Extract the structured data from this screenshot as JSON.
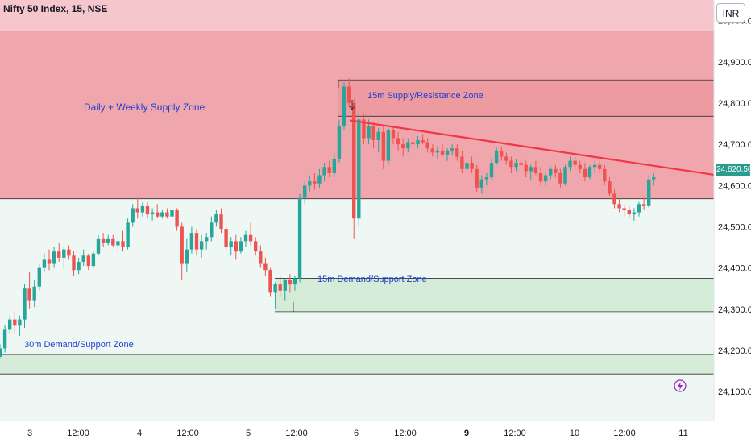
{
  "header": {
    "title": "Nifty 50 Index, 15, NSE",
    "currency": "INR"
  },
  "last_price_label": "24,620.50",
  "colors": {
    "up": "#26a69a",
    "down": "#ef5350",
    "supply_zone": "#f0a6ad",
    "supply_zone_top": "#f5c7cc",
    "demand_zone": "#d4ecd8",
    "lower_bg": "#eef7f4",
    "trendline": "#f23645",
    "zone_text": "#1e3fd1",
    "price_badge": "#2a9d8f"
  },
  "chart_data": {
    "type": "candlestick",
    "ylim": [
      24030,
      25050
    ],
    "yticks": [
      "24,100.00",
      "24,200.00",
      "24,300.00",
      "24,400.00",
      "24,500.00",
      "24,600.00",
      "24,700.00",
      "24,800.00",
      "24,900.00",
      "25,000.00"
    ],
    "ytick_values": [
      24100,
      24200,
      24300,
      24400,
      24500,
      24600,
      24700,
      24800,
      24900,
      25000
    ],
    "xticks": [
      "3",
      "12:00",
      "4",
      "12:00",
      "5",
      "12:00",
      "6",
      "12:00",
      "9",
      "12:00",
      "10",
      "12:00",
      "11"
    ],
    "xtick_index": [
      3,
      14,
      25,
      36,
      47,
      58,
      69,
      80,
      91,
      102,
      113,
      124,
      135
    ],
    "bold_xticks": [
      "9"
    ],
    "last_price": 24620.5,
    "zones": [
      {
        "name": "Daily + Weekly Supply Zone",
        "low": 24568,
        "high": 24975
      },
      {
        "name": "15m Supply/Resistance Zone",
        "low": 24768,
        "high": 24856
      },
      {
        "name": "15m Demand/Support Zone",
        "low": 24294,
        "high": 24375
      },
      {
        "name": "30m Demand/Support Zone",
        "low": 24143,
        "high": 24190
      }
    ],
    "trendline": {
      "from": {
        "index": 70,
        "value": 24758
      },
      "to": {
        "index": 143,
        "value": 24628
      }
    },
    "candles": [
      [
        24185,
        24215,
        24180,
        24205
      ],
      [
        24205,
        24260,
        24195,
        24250
      ],
      [
        24250,
        24285,
        24240,
        24275
      ],
      [
        24275,
        24295,
        24240,
        24260
      ],
      [
        24260,
        24285,
        24235,
        24275
      ],
      [
        24275,
        24360,
        24255,
        24350
      ],
      [
        24350,
        24390,
        24300,
        24320
      ],
      [
        24320,
        24370,
        24305,
        24355
      ],
      [
        24355,
        24410,
        24345,
        24400
      ],
      [
        24400,
        24435,
        24390,
        24420
      ],
      [
        24420,
        24445,
        24395,
        24410
      ],
      [
        24410,
        24450,
        24400,
        24440
      ],
      [
        24440,
        24460,
        24415,
        24425
      ],
      [
        24425,
        24450,
        24400,
        24445
      ],
      [
        24445,
        24455,
        24420,
        24430
      ],
      [
        24430,
        24440,
        24380,
        24395
      ],
      [
        24395,
        24425,
        24385,
        24415
      ],
      [
        24415,
        24445,
        24405,
        24430
      ],
      [
        24430,
        24435,
        24395,
        24405
      ],
      [
        24405,
        24440,
        24400,
        24435
      ],
      [
        24435,
        24480,
        24430,
        24470
      ],
      [
        24470,
        24485,
        24450,
        24460
      ],
      [
        24460,
        24480,
        24455,
        24470
      ],
      [
        24470,
        24480,
        24450,
        24455
      ],
      [
        24455,
        24470,
        24440,
        24465
      ],
      [
        24465,
        24490,
        24440,
        24450
      ],
      [
        24450,
        24520,
        24445,
        24510
      ],
      [
        24510,
        24555,
        24500,
        24545
      ],
      [
        24545,
        24570,
        24520,
        24535
      ],
      [
        24535,
        24560,
        24525,
        24550
      ],
      [
        24550,
        24560,
        24520,
        24530
      ],
      [
        24530,
        24545,
        24515,
        24535
      ],
      [
        24535,
        24555,
        24520,
        24525
      ],
      [
        24525,
        24540,
        24520,
        24535
      ],
      [
        24535,
        24545,
        24520,
        24525
      ],
      [
        24525,
        24550,
        24515,
        24540
      ],
      [
        24540,
        24545,
        24490,
        24500
      ],
      [
        24500,
        24510,
        24370,
        24410
      ],
      [
        24410,
        24470,
        24390,
        24445
      ],
      [
        24445,
        24500,
        24435,
        24485
      ],
      [
        24485,
        24495,
        24430,
        24445
      ],
      [
        24445,
        24480,
        24425,
        24465
      ],
      [
        24465,
        24485,
        24445,
        24475
      ],
      [
        24475,
        24525,
        24465,
        24510
      ],
      [
        24510,
        24540,
        24500,
        24530
      ],
      [
        24530,
        24545,
        24485,
        24495
      ],
      [
        24495,
        24510,
        24440,
        24450
      ],
      [
        24450,
        24475,
        24430,
        24465
      ],
      [
        24465,
        24480,
        24420,
        24440
      ],
      [
        24440,
        24475,
        24435,
        24465
      ],
      [
        24465,
        24490,
        24450,
        24480
      ],
      [
        24480,
        24510,
        24455,
        24465
      ],
      [
        24465,
        24475,
        24430,
        24440
      ],
      [
        24440,
        24455,
        24400,
        24410
      ],
      [
        24410,
        24425,
        24380,
        24395
      ],
      [
        24395,
        24400,
        24330,
        24340
      ],
      [
        24340,
        24365,
        24300,
        24360
      ],
      [
        24360,
        24380,
        24330,
        24345
      ],
      [
        24345,
        24375,
        24320,
        24370
      ],
      [
        24370,
        24385,
        24340,
        24360
      ],
      [
        24360,
        24380,
        24345,
        24375
      ],
      [
        24375,
        24580,
        24365,
        24570
      ],
      [
        24570,
        24610,
        24555,
        24600
      ],
      [
        24600,
        24625,
        24585,
        24610
      ],
      [
        24610,
        24630,
        24590,
        24605
      ],
      [
        24605,
        24640,
        24595,
        24625
      ],
      [
        24625,
        24655,
        24610,
        24645
      ],
      [
        24645,
        24660,
        24620,
        24630
      ],
      [
        24630,
        24680,
        24620,
        24665
      ],
      [
        24665,
        24760,
        24655,
        24745
      ],
      [
        24745,
        24850,
        24735,
        24840
      ],
      [
        24840,
        24860,
        24790,
        24800
      ],
      [
        24800,
        24810,
        24470,
        24520
      ],
      [
        24520,
        24780,
        24500,
        24760
      ],
      [
        24760,
        24775,
        24700,
        24715
      ],
      [
        24715,
        24760,
        24700,
        24745
      ],
      [
        24745,
        24755,
        24690,
        24710
      ],
      [
        24710,
        24740,
        24680,
        24730
      ],
      [
        24730,
        24745,
        24640,
        24660
      ],
      [
        24660,
        24740,
        24650,
        24735
      ],
      [
        24735,
        24745,
        24700,
        24715
      ],
      [
        24715,
        24730,
        24685,
        24700
      ],
      [
        24700,
        24715,
        24670,
        24690
      ],
      [
        24690,
        24715,
        24680,
        24705
      ],
      [
        24705,
        24720,
        24690,
        24700
      ],
      [
        24700,
        24720,
        24690,
        24710
      ],
      [
        24710,
        24725,
        24700,
        24705
      ],
      [
        24705,
        24715,
        24680,
        24690
      ],
      [
        24690,
        24700,
        24670,
        24680
      ],
      [
        24680,
        24695,
        24665,
        24685
      ],
      [
        24685,
        24700,
        24670,
        24675
      ],
      [
        24675,
        24690,
        24660,
        24685
      ],
      [
        24685,
        24700,
        24675,
        24690
      ],
      [
        24690,
        24700,
        24660,
        24670
      ],
      [
        24670,
        24685,
        24630,
        24640
      ],
      [
        24640,
        24660,
        24620,
        24655
      ],
      [
        24655,
        24670,
        24630,
        24640
      ],
      [
        24640,
        24650,
        24585,
        24595
      ],
      [
        24595,
        24625,
        24580,
        24615
      ],
      [
        24615,
        24630,
        24600,
        24620
      ],
      [
        24620,
        24665,
        24615,
        24655
      ],
      [
        24655,
        24695,
        24650,
        24685
      ],
      [
        24685,
        24695,
        24660,
        24670
      ],
      [
        24670,
        24680,
        24650,
        24660
      ],
      [
        24660,
        24670,
        24630,
        24645
      ],
      [
        24645,
        24665,
        24635,
        24655
      ],
      [
        24655,
        24670,
        24640,
        24650
      ],
      [
        24650,
        24660,
        24620,
        24635
      ],
      [
        24635,
        24650,
        24615,
        24645
      ],
      [
        24645,
        24660,
        24625,
        24630
      ],
      [
        24630,
        24645,
        24600,
        24610
      ],
      [
        24610,
        24630,
        24600,
        24625
      ],
      [
        24625,
        24645,
        24615,
        24640
      ],
      [
        24640,
        24650,
        24620,
        24630
      ],
      [
        24630,
        24640,
        24595,
        24605
      ],
      [
        24605,
        24650,
        24600,
        24645
      ],
      [
        24645,
        24670,
        24635,
        24660
      ],
      [
        24660,
        24670,
        24640,
        24650
      ],
      [
        24650,
        24660,
        24630,
        24640
      ],
      [
        24640,
        24655,
        24610,
        24620
      ],
      [
        24620,
        24650,
        24615,
        24645
      ],
      [
        24645,
        24660,
        24630,
        24650
      ],
      [
        24650,
        24660,
        24630,
        24640
      ],
      [
        24640,
        24650,
        24600,
        24610
      ],
      [
        24610,
        24620,
        24575,
        24580
      ],
      [
        24580,
        24590,
        24545,
        24555
      ],
      [
        24555,
        24570,
        24535,
        24545
      ],
      [
        24545,
        24555,
        24525,
        24540
      ],
      [
        24540,
        24550,
        24520,
        24530
      ],
      [
        24530,
        24545,
        24515,
        24535
      ],
      [
        24535,
        24560,
        24525,
        24555
      ],
      [
        24555,
        24570,
        24540,
        24550
      ],
      [
        24550,
        24625,
        24545,
        24615
      ],
      [
        24615,
        24630,
        24600,
        24620
      ]
    ]
  }
}
